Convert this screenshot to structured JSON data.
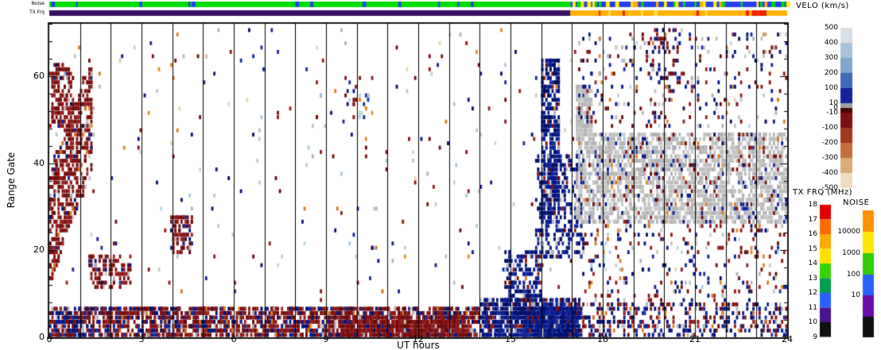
{
  "chart_data": {
    "type": "heatmap",
    "xlabel": "UT hours",
    "ylabel": "Range Gate",
    "x_range": [
      0,
      24
    ],
    "gate_max": 72,
    "x_ticks": [
      0,
      3,
      6,
      9,
      12,
      15,
      18,
      21,
      24
    ],
    "y_ticks": [
      0,
      20,
      40,
      60
    ],
    "seed": 42,
    "strips": {
      "noise": {
        "label": "Noise",
        "segments": [
          {
            "t": [
              0,
              16.95
            ],
            "color": "#00dd00"
          },
          {
            "t": [
              16.95,
              24
            ],
            "color": "#2440ee"
          }
        ],
        "flecks": [
          {
            "t": [
              0,
              16.95
            ],
            "colors": [
              "#2440ee"
            ],
            "n": 12
          },
          {
            "t": [
              16.95,
              24
            ],
            "colors": [
              "#00dd00",
              "#ffaa00",
              "#ffee00",
              "#00dd00"
            ],
            "n": 40
          }
        ]
      },
      "tx": {
        "label": "TX Frq",
        "segments": [
          {
            "t": [
              0,
              16.95
            ],
            "color": "#3a1066"
          },
          {
            "t": [
              16.95,
              24
            ],
            "color": "#ffb300"
          }
        ],
        "flecks": [
          {
            "t": [
              17,
              24
            ],
            "colors": [
              "#ee2200",
              "#884400",
              "#ffdd55"
            ],
            "n": 10
          },
          {
            "t": [
              22.5,
              23.4
            ],
            "colors": [
              "#ee2200"
            ],
            "n": 6
          }
        ]
      }
    },
    "legends": {
      "velo": {
        "title": "VELO (km/s)",
        "labels": [
          "500",
          "400",
          "300",
          "200",
          "100",
          "10",
          "0",
          "-10",
          "-100",
          "-200",
          "-300",
          "-400",
          "-500"
        ],
        "colors": [
          "#d9dfe6",
          "#aac2d8",
          "#7fa6cc",
          "#3f6ab8",
          "#14239b",
          "#a0a0a0",
          "#4a0505",
          "#7c1010",
          "#a03a20",
          "#c4703a",
          "#dcaa74",
          "#eedcbe"
        ]
      },
      "txfrq": {
        "title": "TX FRQ (MHz)",
        "labels": [
          "18",
          "17",
          "16",
          "15",
          "14",
          "13",
          "12",
          "11",
          "10",
          "9"
        ],
        "colors": [
          "#e00000",
          "#ff6a00",
          "#ffaa00",
          "#ffe000",
          "#33d400",
          "#009e4f",
          "#2962ff",
          "#4a148c",
          "#111111"
        ]
      },
      "noise": {
        "title": "NOISE",
        "labels": [
          "10000",
          "1000",
          "100",
          "10"
        ],
        "colors": [
          "#ff9100",
          "#ffe800",
          "#2ecc00",
          "#2962ff",
          "#6a0dad",
          "#111111"
        ]
      }
    },
    "point_colors": {
      "R": [
        "#7c0e0e",
        "#8b1717",
        "#6d0a0a",
        "#942020"
      ],
      "B": [
        "#00117e",
        "#0a1d8f",
        "#001060",
        "#16279b"
      ],
      "G": [
        "#bfbfbf",
        "#c9c9c9",
        "#b3b3b3"
      ],
      "O": [
        "#e08a28",
        "#d97a1e"
      ],
      "L": [
        "#a9c9e0",
        "#bcd6e8"
      ],
      "C": [
        "#e6d5ac"
      ]
    },
    "regions": [
      {
        "name": "dawn-diagonal",
        "t": [
          0.0,
          1.4
        ],
        "g": [
          24,
          24
        ],
        "slope": 20,
        "spread": 13,
        "n": 520,
        "w": {
          "R": 0.88,
          "G": 0.05,
          "B": 0.04,
          "O": 0.03
        }
      },
      {
        "name": "dawn-top-blob",
        "t": [
          0.05,
          0.75
        ],
        "g": [
          48,
          63
        ],
        "n": 170,
        "w": {
          "R": 0.93,
          "G": 0.04,
          "B": 0.03
        }
      },
      {
        "name": "dawn-low",
        "t": [
          1.3,
          2.7
        ],
        "g": [
          11,
          19
        ],
        "n": 110,
        "w": {
          "R": 0.85,
          "B": 0.08,
          "G": 0.07
        }
      },
      {
        "name": "morning-cluster",
        "t": [
          3.95,
          4.65
        ],
        "g": [
          19,
          28
        ],
        "n": 95,
        "w": {
          "R": 0.7,
          "B": 0.2,
          "G": 0.1
        }
      },
      {
        "name": "bottom-early",
        "t": [
          0.05,
          1.2
        ],
        "g": [
          0,
          7
        ],
        "n": 210,
        "w": {
          "B": 0.5,
          "R": 0.4,
          "G": 0.1
        }
      },
      {
        "name": "bottom-main",
        "t": [
          1.2,
          14.0
        ],
        "g": [
          0,
          7
        ],
        "n": 2000,
        "w": {
          "R": 0.66,
          "B": 0.26,
          "G": 0.05,
          "O": 0.03
        }
      },
      {
        "name": "bottom-midday-dense",
        "t": [
          9.5,
          13.5
        ],
        "g": [
          0,
          5
        ],
        "n": 700,
        "w": {
          "R": 0.85,
          "B": 0.1,
          "G": 0.05
        }
      },
      {
        "name": "bottom-evening",
        "t": [
          14.0,
          17.3
        ],
        "g": [
          0,
          9
        ],
        "n": 800,
        "w": {
          "B": 0.82,
          "R": 0.12,
          "G": 0.06
        }
      },
      {
        "name": "bottom-evening-core",
        "t": [
          15.4,
          17.2
        ],
        "g": [
          0,
          7
        ],
        "n": 500,
        "w": {
          "B": 0.92,
          "R": 0.05,
          "G": 0.03
        }
      },
      {
        "name": "bottom-late",
        "t": [
          17.3,
          24.0
        ],
        "g": [
          0,
          8
        ],
        "n": 420,
        "w": {
          "B": 0.55,
          "R": 0.3,
          "G": 0.1,
          "O": 0.05
        }
      },
      {
        "name": "dusk-column-core",
        "t": [
          16.0,
          16.6
        ],
        "g": [
          26,
          64
        ],
        "n": 430,
        "w": {
          "B": 0.93,
          "R": 0.04,
          "G": 0.03
        }
      },
      {
        "name": "dusk-column-fringe",
        "t": [
          15.85,
          17.4
        ],
        "g": [
          18,
          42
        ],
        "n": 320,
        "w": {
          "B": 0.85,
          "R": 0.08,
          "G": 0.07
        }
      },
      {
        "name": "dusk-mid",
        "t": [
          14.8,
          16.0
        ],
        "g": [
          8,
          20
        ],
        "n": 160,
        "w": {
          "B": 0.8,
          "R": 0.12,
          "G": 0.08
        }
      },
      {
        "name": "evening-groundscatter",
        "t": [
          17.15,
          24.0
        ],
        "g": [
          26,
          47
        ],
        "n": 2400,
        "w": {
          "G": 0.84,
          "B": 0.07,
          "R": 0.06,
          "O": 0.015,
          "L": 0.015
        }
      },
      {
        "name": "evening-gs-top",
        "t": [
          17.15,
          17.65
        ],
        "g": [
          46,
          58
        ],
        "n": 200,
        "w": {
          "G": 0.9,
          "B": 0.05,
          "R": 0.05
        }
      },
      {
        "name": "evening-high",
        "t": [
          17.2,
          24.0
        ],
        "g": [
          48,
          70
        ],
        "n": 280,
        "w": {
          "R": 0.38,
          "B": 0.3,
          "G": 0.18,
          "O": 0.07,
          "L": 0.07
        }
      },
      {
        "name": "evening-high-cluster",
        "t": [
          19.4,
          20.6
        ],
        "g": [
          58,
          71
        ],
        "n": 60,
        "w": {
          "R": 0.45,
          "B": 0.45,
          "G": 0.1
        }
      },
      {
        "name": "evening-low",
        "t": [
          17.4,
          24.0
        ],
        "g": [
          8,
          26
        ],
        "n": 230,
        "w": {
          "R": 0.42,
          "B": 0.34,
          "G": 0.1,
          "O": 0.08,
          "L": 0.06
        }
      },
      {
        "name": "midday-high-specks",
        "t": [
          9.55,
          10.35
        ],
        "g": [
          50,
          60
        ],
        "n": 30,
        "w": {
          "R": 0.4,
          "B": 0.25,
          "L": 0.2,
          "O": 0.15
        }
      },
      {
        "name": "background-specks",
        "t": [
          0.0,
          24.0
        ],
        "g": [
          8,
          71
        ],
        "n": 380,
        "w": {
          "R": 0.3,
          "B": 0.24,
          "G": 0.16,
          "O": 0.14,
          "L": 0.12,
          "C": 0.04
        }
      }
    ]
  }
}
